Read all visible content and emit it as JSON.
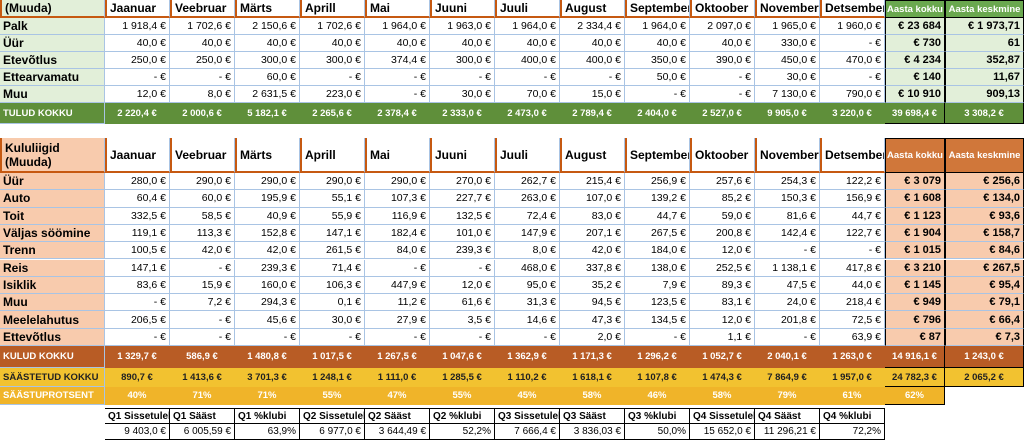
{
  "income": {
    "header": [
      "(Muuda)",
      "Jaanuar",
      "Veebruar",
      "Märts",
      "Aprill",
      "Mai",
      "Juuni",
      "Juuli",
      "August",
      "September",
      "Oktoober",
      "November",
      "Detsember",
      "Aasta kokku",
      "Aasta keskmine"
    ],
    "rows": [
      {
        "label": "Palk",
        "cells": [
          "1 918,4 €",
          "1 702,6 €",
          "2 150,6 €",
          "1 702,6 €",
          "1 964,0 €",
          "1 963,0 €",
          "1 964,0 €",
          "2 334,4 €",
          "1 964,0 €",
          "2 097,0 €",
          "1 965,0 €",
          "1 960,0 €",
          "€ 23 684",
          "€ 1 973,71"
        ]
      },
      {
        "label": "Üür",
        "cells": [
          "40,0 €",
          "40,0 €",
          "40,0 €",
          "40,0 €",
          "40,0 €",
          "40,0 €",
          "40,0 €",
          "40,0 €",
          "40,0 €",
          "40,0 €",
          "330,0 €",
          "- €",
          "€ 730",
          "61"
        ]
      },
      {
        "label": "Etevõtlus",
        "cells": [
          "250,0 €",
          "250,0 €",
          "300,0 €",
          "300,0 €",
          "374,4 €",
          "300,0 €",
          "400,0 €",
          "400,0 €",
          "350,0 €",
          "390,0 €",
          "450,0 €",
          "470,0 €",
          "€ 4 234",
          "352,87"
        ]
      },
      {
        "label": "Ettearvamatu",
        "cells": [
          "- €",
          "- €",
          "60,0 €",
          "- €",
          "- €",
          "- €",
          "- €",
          "- €",
          "50,0 €",
          "- €",
          "30,0 €",
          "- €",
          "€ 140",
          "11,67"
        ]
      },
      {
        "label": "Muu",
        "cells": [
          "12,0 €",
          "8,0 €",
          "2 631,5 €",
          "223,0 €",
          "- €",
          "30,0 €",
          "70,0 €",
          "15,0 €",
          "- €",
          "- €",
          "7 130,0 €",
          "790,0 €",
          "€ 10 910",
          "909,13"
        ]
      }
    ],
    "total": {
      "label": "TULUD KOKKU",
      "cells": [
        "2 220,4 €",
        "2 000,6 €",
        "5 182,1 €",
        "2 265,6 €",
        "2 378,4 €",
        "2 333,0 €",
        "2 473,0 €",
        "2 789,4 €",
        "2 404,0 €",
        "2 527,0 €",
        "9 905,0 €",
        "3 220,0 €",
        "39 698,4 €",
        "3 308,2 €"
      ]
    }
  },
  "expenses": {
    "header": [
      "Kululiigid (Muuda)",
      "Jaanuar",
      "Veebruar",
      "Märts",
      "Aprill",
      "Mai",
      "Juuni",
      "Juuli",
      "August",
      "September",
      "Oktoober",
      "November",
      "Detsember",
      "Aasta kokku",
      "Aasta keskmine"
    ],
    "rows": [
      {
        "label": "Üür",
        "cells": [
          "280,0 €",
          "290,0 €",
          "290,0 €",
          "290,0 €",
          "290,0 €",
          "270,0 €",
          "262,7 €",
          "215,4 €",
          "256,9 €",
          "257,6 €",
          "254,3 €",
          "122,2 €",
          "€ 3 079",
          "€ 256,6"
        ]
      },
      {
        "label": "Auto",
        "cells": [
          "60,4 €",
          "60,0 €",
          "195,9 €",
          "55,1 €",
          "107,3 €",
          "227,7 €",
          "263,0 €",
          "107,0 €",
          "139,2 €",
          "85,2 €",
          "150,3 €",
          "156,9 €",
          "€ 1 608",
          "€ 134,0"
        ]
      },
      {
        "label": "Toit",
        "cells": [
          "332,5 €",
          "58,5 €",
          "40,9 €",
          "55,9 €",
          "116,9 €",
          "132,5 €",
          "72,4 €",
          "83,0 €",
          "44,7 €",
          "59,0 €",
          "81,6 €",
          "44,7 €",
          "€ 1 123",
          "€ 93,6"
        ]
      },
      {
        "label": "Väljas söömine",
        "cells": [
          "119,1 €",
          "113,3 €",
          "152,8 €",
          "147,1 €",
          "182,4 €",
          "101,0 €",
          "147,9 €",
          "207,1 €",
          "267,5 €",
          "200,8 €",
          "142,4 €",
          "122,7 €",
          "€ 1 904",
          "€ 158,7"
        ]
      },
      {
        "label": "Trenn",
        "cells": [
          "100,5 €",
          "42,0 €",
          "42,0 €",
          "261,5 €",
          "84,0 €",
          "239,3 €",
          "8,0 €",
          "42,0 €",
          "184,0 €",
          "12,0 €",
          "- €",
          "- €",
          "€ 1 015",
          "€ 84,6"
        ]
      },
      {
        "label": "Reis",
        "cells": [
          "147,1 €",
          "- €",
          "239,3 €",
          "71,4 €",
          "- €",
          "- €",
          "468,0 €",
          "337,8 €",
          "138,0 €",
          "252,5 €",
          "1 138,1 €",
          "417,8 €",
          "€ 3 210",
          "€ 267,5"
        ]
      },
      {
        "label": "Isiklik",
        "cells": [
          "83,6 €",
          "15,9 €",
          "160,0 €",
          "106,3 €",
          "447,9 €",
          "12,0 €",
          "95,0 €",
          "35,2 €",
          "7,9 €",
          "89,3 €",
          "47,5 €",
          "44,0 €",
          "€ 1 145",
          "€ 95,4"
        ]
      },
      {
        "label": "Muu",
        "cells": [
          "- €",
          "7,2 €",
          "294,3 €",
          "0,1 €",
          "11,2 €",
          "61,6 €",
          "31,3 €",
          "94,5 €",
          "123,5 €",
          "83,1 €",
          "24,0 €",
          "218,4 €",
          "€ 949",
          "€ 79,1"
        ]
      },
      {
        "label": "Meelelahutus",
        "cells": [
          "206,5 €",
          "- €",
          "45,6 €",
          "30,0 €",
          "27,9 €",
          "3,5 €",
          "14,6 €",
          "47,3 €",
          "134,5 €",
          "12,0 €",
          "201,8 €",
          "72,5 €",
          "€ 796",
          "€ 66,4"
        ]
      },
      {
        "label": "Ettevõtlus",
        "cells": [
          "- €",
          "- €",
          "- €",
          "- €",
          "- €",
          "- €",
          "- €",
          "2,0 €",
          "- €",
          "1,1 €",
          "- €",
          "63,9 €",
          "€ 87",
          "€ 7,3"
        ]
      }
    ],
    "total": {
      "label": "KULUD KOKKU",
      "cells": [
        "1 329,7 €",
        "586,9 €",
        "1 480,8 €",
        "1 017,5 €",
        "1 267,5 €",
        "1 047,6 €",
        "1 362,9 €",
        "1 171,3 €",
        "1 296,2 €",
        "1 052,7 €",
        "2 040,1 €",
        "1 263,0 €",
        "14 916,1 €",
        "1 243,0 €"
      ]
    }
  },
  "savings": {
    "label": "SÄÄSTETUD KOKKU",
    "cells": [
      "890,7 €",
      "1 413,6 €",
      "3 701,3 €",
      "1 248,1 €",
      "1 111,0 €",
      "1 285,5 €",
      "1 110,2 €",
      "1 618,1 €",
      "1 107,8 €",
      "1 474,3 €",
      "7 864,9 €",
      "1 957,0 €",
      "24 782,3 €",
      "2 065,2 €"
    ]
  },
  "savings_rate": {
    "label": "SÄÄSTUPROTSENT",
    "cells": [
      "40%",
      "71%",
      "71%",
      "55%",
      "47%",
      "55%",
      "45%",
      "58%",
      "46%",
      "58%",
      "79%",
      "61%",
      "62%"
    ]
  },
  "quarters": {
    "headers": [
      "Q1 Sissetulek",
      "Q1 Sääst",
      "Q1 %klubi",
      "Q2 Sissetulek",
      "Q2 Sääst",
      "Q2 %klubi",
      "Q3 Sissetulek",
      "Q3 Sääst",
      "Q3 %klubi",
      "Q4 Sissetulek",
      "Q4 Sääst",
      "Q4 %klubi"
    ],
    "values": [
      "9 403,0 €",
      "6 005,59 €",
      "63,9%",
      "6 977,0 €",
      "3 644,49 €",
      "52,2%",
      "7 666,4 €",
      "3 836,03 €",
      "50,0%",
      "15 652,0 €",
      "11 296,21 €",
      "72,2%"
    ]
  }
}
